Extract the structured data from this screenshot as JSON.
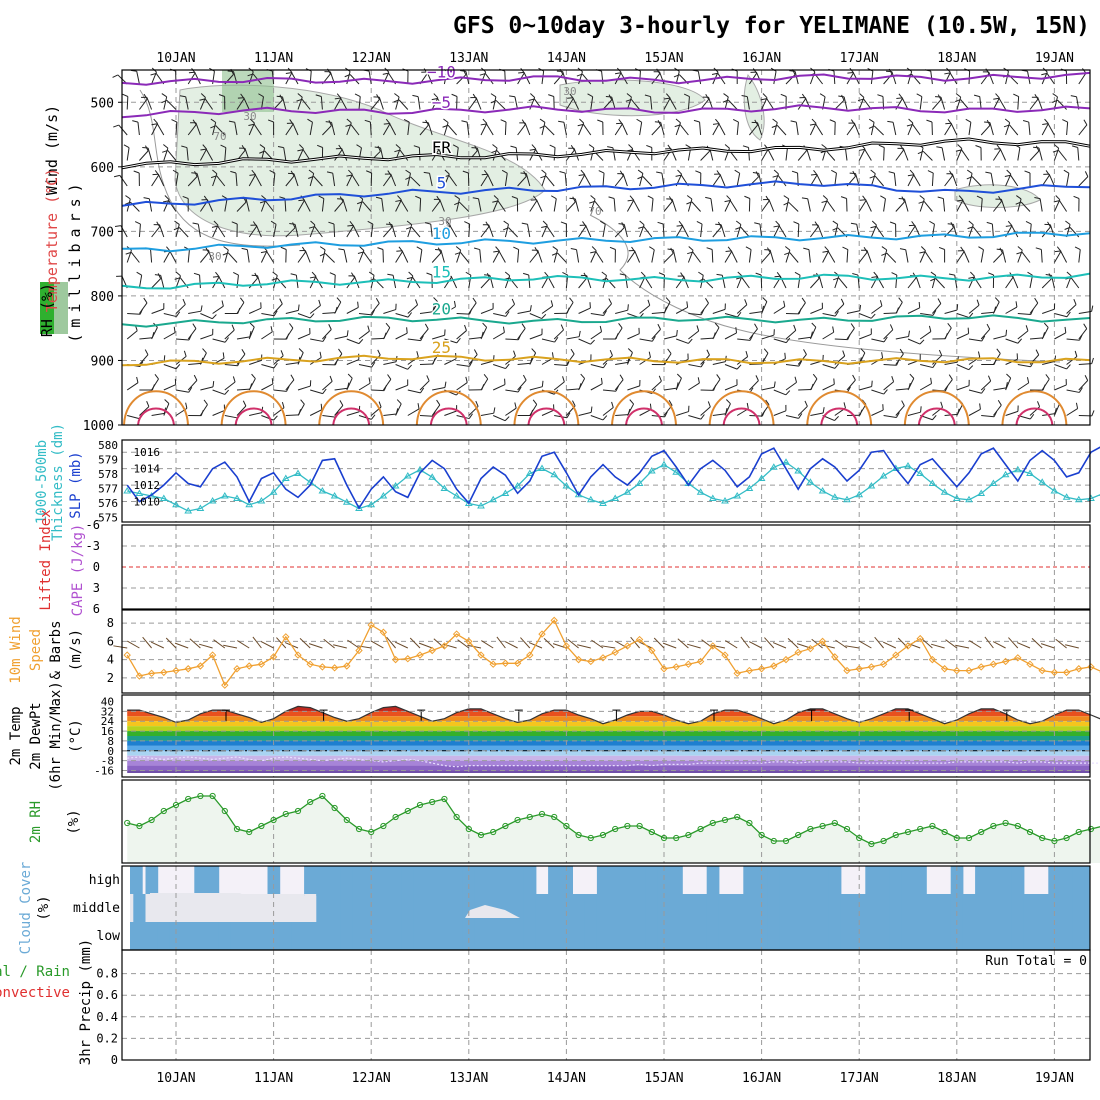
{
  "chart_data": {
    "type": "meteogram",
    "title": "GFS 0~10day 3-hourly for YELIMANE (10.5W, 15N)",
    "dates": [
      "10JAN",
      "11JAN",
      "12JAN",
      "13JAN",
      "14JAN",
      "15JAN",
      "16JAN",
      "17JAN",
      "18JAN",
      "19JAN"
    ],
    "time_steps_per_day": 8,
    "panels": {
      "upper_air": {
        "ylabel_lines": [
          "Wind (m/s)",
          "Temperature (°C)",
          "RH (%)"
        ],
        "ylabel_sub": "(millibars)",
        "pressure_ticks": [
          "500",
          "600",
          "700",
          "800",
          "900",
          "1000"
        ],
        "temp_contours": [
          {
            "label": "−10",
            "color": "#8b2ab8",
            "pressure": [
              470,
              465,
              468,
              462,
              467,
              460,
              463,
              458
            ]
          },
          {
            "label": "−5",
            "color": "#8b2ab8",
            "pressure": [
              520,
              512,
              515,
              510,
              514,
              508,
              513,
              510
            ]
          },
          {
            "label": "FR",
            "color": "#000000",
            "pressure": [
              598,
              590,
              585,
              582,
              575,
              572,
              560,
              565
            ]
          },
          {
            "label": "5",
            "color": "#1f4fd8",
            "pressure": [
              660,
              650,
              640,
              635,
              630,
              625,
              640,
              628
            ]
          },
          {
            "label": "10",
            "color": "#1e9ee0",
            "pressure": [
              730,
              722,
              718,
              715,
              712,
              710,
              708,
              702
            ]
          },
          {
            "label": "15",
            "color": "#1dbfb8",
            "pressure": [
              788,
              780,
              778,
              772,
              775,
              770,
              773,
              768
            ]
          },
          {
            "label": "20",
            "color": "#1aa88e",
            "pressure": [
              845,
              838,
              835,
              840,
              835,
              838,
              832,
              838
            ]
          },
          {
            "label": "25",
            "color": "#d9a21e",
            "pressure": [
              905,
              900,
              895,
              898,
              900,
              902,
              899,
              901
            ]
          }
        ],
        "rh_labels": [
          "30",
          "70",
          "30",
          "30",
          "70",
          "30"
        ]
      },
      "thickness_slp": {
        "ylabels": [
          "1000-500mb",
          "Thickness (dm)",
          "SLP (mb)"
        ],
        "thickness_ticks": [
          "580",
          "579",
          "578",
          "577",
          "576",
          "575"
        ],
        "slp_ticks": [
          "1016",
          "1014",
          "1012",
          "1010"
        ],
        "slp_mb": [
          1012.0,
          1010.0,
          1010.8,
          1012.0,
          1013.5,
          1012.2,
          1011.8,
          1014.0,
          1014.8,
          1013.0,
          1010.0,
          1012.8,
          1013.5,
          1011.5,
          1010.5,
          1012.0,
          1015.0,
          1015.2,
          1012.0,
          1009.2,
          1011.5,
          1013.0,
          1011.2,
          1010.5,
          1013.5,
          1015.0,
          1014.0,
          1011.5,
          1009.8,
          1012.8,
          1014.2,
          1013.2,
          1011.0,
          1012.5,
          1015.5,
          1016.0,
          1013.5,
          1010.8,
          1013.0,
          1014.5,
          1013.0,
          1012.0,
          1013.5,
          1015.5,
          1016.2,
          1014.2,
          1012.0,
          1014.0,
          1015.0,
          1013.8,
          1011.8,
          1013.0,
          1015.8,
          1016.5,
          1014.0,
          1011.5,
          1014.0,
          1015.2,
          1014.2,
          1012.5,
          1013.8,
          1016.0,
          1016.2,
          1014.0,
          1012.2,
          1014.5,
          1015.2,
          1013.5,
          1011.8,
          1013.5,
          1015.8,
          1016.5,
          1014.5,
          1012.5,
          1015.0,
          1016.2,
          1015.0,
          1013.0,
          1013.5,
          1016.0,
          1016.8,
          1015.2,
          1012.8,
          1013.8,
          1014.0
        ],
        "thickness_dm": [
          576.6,
          576.4,
          576.2,
          576.0,
          575.5,
          575.0,
          575.2,
          575.8,
          576.2,
          576.0,
          575.5,
          575.8,
          576.5,
          577.6,
          578.0,
          577.3,
          576.6,
          576.2,
          575.7,
          575.2,
          575.5,
          576.2,
          577.0,
          577.8,
          578.3,
          577.7,
          576.8,
          576.2,
          575.6,
          575.4,
          575.9,
          576.4,
          577.0,
          578.0,
          578.4,
          577.9,
          577.0,
          576.3,
          575.9,
          575.6,
          576.0,
          576.5,
          577.2,
          578.2,
          578.7,
          578.1,
          577.2,
          576.5,
          576.0,
          575.8,
          576.2,
          576.8,
          577.6,
          578.5,
          578.9,
          578.2,
          577.3,
          576.6,
          576.1,
          575.9,
          576.3,
          577.0,
          577.8,
          578.4,
          578.6,
          578.0,
          577.2,
          576.5,
          576.0,
          575.9,
          576.4,
          577.2,
          577.9,
          578.3,
          578.0,
          577.3,
          576.6,
          576.1,
          575.9,
          576.0,
          576.4,
          577.0,
          577.3,
          576.6,
          575.8
        ]
      },
      "cape_li": {
        "ylabels": [
          "Lifted Index",
          "CAPE (J/kg)"
        ],
        "li_ticks": [
          "-6",
          "-3",
          "0",
          "3",
          "6"
        ]
      },
      "wind10m": {
        "ylabels": [
          "10m Wind",
          "Speed",
          "& Barbs",
          "(m/s)"
        ],
        "ticks": [
          "8",
          "6",
          "4",
          "2"
        ],
        "speed_ms": [
          4.5,
          2.2,
          2.5,
          2.6,
          2.8,
          3.0,
          3.3,
          4.5,
          1.2,
          3.0,
          3.3,
          3.5,
          4.3,
          6.5,
          4.5,
          3.5,
          3.2,
          3.1,
          3.3,
          5.0,
          7.8,
          7.0,
          4.0,
          4.1,
          4.5,
          5.0,
          5.5,
          6.8,
          6.0,
          4.5,
          3.5,
          3.6,
          3.6,
          4.5,
          6.8,
          8.3,
          5.5,
          4.0,
          3.8,
          4.2,
          4.8,
          5.5,
          6.2,
          5.0,
          3.0,
          3.2,
          3.5,
          3.8,
          5.5,
          4.5,
          2.5,
          2.8,
          3.0,
          3.3,
          4.0,
          4.8,
          5.2,
          6.0,
          4.3,
          2.8,
          3.0,
          3.2,
          3.5,
          4.5,
          5.5,
          6.3,
          4.0,
          3.0,
          2.8,
          2.8,
          3.2,
          3.5,
          3.8,
          4.2,
          3.5,
          2.8,
          2.6,
          2.6,
          3.0,
          3.2,
          2.6,
          2.0,
          1.8,
          2.2,
          2.8
        ]
      },
      "temp2m": {
        "ylabels": [
          "2m Temp",
          "2m DewPt",
          "(6hr Min/Max)",
          "(°C)"
        ],
        "ticks": [
          "40",
          "32",
          "24",
          "16",
          "8",
          "0",
          "-8",
          "-16"
        ],
        "temp_c": [
          33,
          33,
          30,
          27,
          23,
          25,
          30,
          33,
          33,
          30,
          27,
          23,
          26,
          32,
          36,
          35,
          31,
          27,
          24,
          26,
          31,
          35,
          36,
          32,
          28,
          24,
          26,
          31,
          34,
          34,
          30,
          26,
          23,
          25,
          30,
          33,
          33,
          29,
          26,
          22,
          25,
          29,
          32,
          32,
          29,
          25,
          22,
          24,
          30,
          33,
          33,
          30,
          26,
          22,
          25,
          31,
          34,
          34,
          30,
          26,
          23,
          26,
          30,
          34,
          34,
          30,
          26,
          22,
          25,
          30,
          34,
          34,
          30,
          25,
          22,
          24,
          29,
          33,
          33,
          29,
          25,
          22,
          21,
          20,
          20
        ],
        "dewpt_c": [
          -6,
          -5,
          -6,
          -7,
          -6,
          -5,
          -6,
          -7,
          -6,
          -5,
          -7,
          -8,
          -6,
          -5,
          -6,
          -7,
          -8,
          -7,
          -6,
          -7,
          -8,
          -9,
          -8,
          -7,
          -8,
          -10,
          -12,
          -13,
          -12,
          -12,
          -12,
          -12,
          -12,
          -12,
          -12,
          -12,
          -12,
          -12,
          -12,
          -12,
          -12,
          -12,
          -11,
          -12,
          -11,
          -11,
          -11,
          -10,
          -10,
          -10,
          -10,
          -10,
          -10,
          -9,
          -9,
          -10,
          -9,
          -9,
          -9,
          -9,
          -10,
          -10,
          -10,
          -10,
          -10,
          -10,
          -10,
          -10,
          -9,
          -9,
          -9,
          -9,
          -9,
          -10,
          -9,
          -9,
          -10,
          -10,
          -10,
          -10,
          -10,
          -10,
          -10,
          -10,
          -10
        ]
      },
      "rh2m": {
        "ylabels": [
          "2m RH",
          "(%)"
        ],
        "rh_pct": [
          20,
          19,
          21,
          24,
          26,
          28,
          29,
          29,
          24,
          18,
          17,
          19,
          21,
          23,
          24,
          27,
          29,
          25,
          21,
          18,
          17,
          19,
          22,
          24,
          26,
          27,
          28,
          22,
          18,
          16,
          17,
          19,
          21,
          22,
          23,
          22,
          19,
          16,
          15,
          16,
          18,
          19,
          19,
          17,
          15,
          15,
          16,
          18,
          20,
          21,
          22,
          20,
          16,
          14,
          14,
          16,
          18,
          19,
          20,
          18,
          15,
          13,
          14,
          16,
          17,
          18,
          19,
          17,
          15,
          15,
          17,
          19,
          20,
          19,
          17,
          15,
          14,
          15,
          17,
          18,
          19,
          18,
          17,
          19,
          23
        ]
      },
      "cloud": {
        "ylabels": [
          "Cloud Cover",
          "(%)"
        ],
        "levels": [
          "high",
          "middle",
          "low"
        ]
      },
      "precip": {
        "ylabels": [
          "3hr Precip (mm)",
          "Total / Rain",
          "Convective"
        ],
        "ticks": [
          "0.8",
          "0.6",
          "0.4",
          "0.2",
          "0"
        ],
        "run_total": "Run Total = 0"
      }
    }
  },
  "colors": {
    "temp_purple": "#8b2ab8",
    "slp_blue": "#1a3fcf",
    "thickness_cyan": "#33bcc6",
    "wind_orange": "#f0a030",
    "rh_green": "#2a9a2a",
    "cloud_blue": "#6baad6",
    "li_red": "#e03030",
    "cape_violet": "#b050d0"
  }
}
